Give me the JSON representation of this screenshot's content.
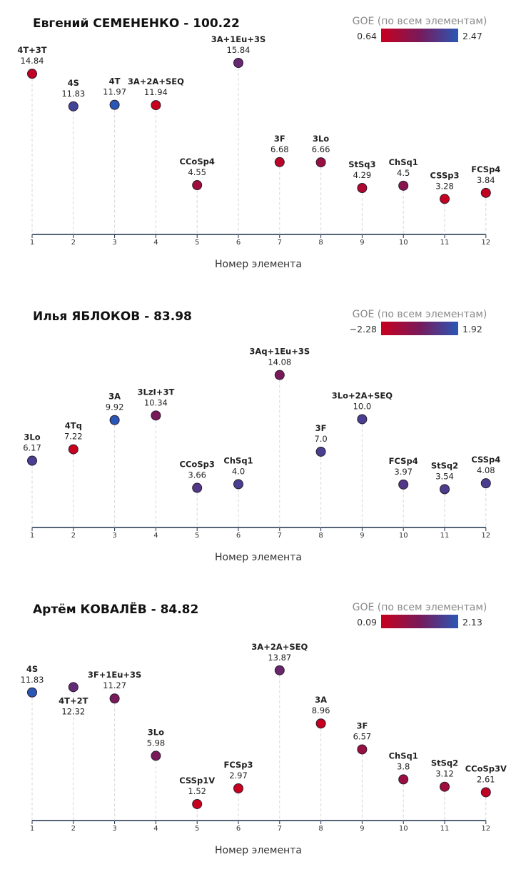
{
  "chart_data": [
    {
      "type": "scatter",
      "title": "Евгений СЕМЕНЕНКО - 100.22",
      "xlabel": "Номер элемента",
      "legend": {
        "title": "GOE (по всем элементам)",
        "min": "0.64",
        "max": "2.47",
        "placement": "top-right"
      },
      "color_low": "#c8001e",
      "color_high": "#2a57b5",
      "x": [
        1,
        2,
        3,
        4,
        5,
        6,
        7,
        8,
        9,
        10,
        11,
        12
      ],
      "elements": [
        {
          "x": 1,
          "label": "4T+3T",
          "value": 14.84,
          "value_text": "14.84",
          "goe_t": 0.05,
          "label_pos": "above"
        },
        {
          "x": 2,
          "label": "4S",
          "value": 11.83,
          "value_text": "11.83",
          "goe_t": 0.85,
          "label_pos": "above"
        },
        {
          "x": 3,
          "label": "4T",
          "value": 11.97,
          "value_text": "11.97",
          "goe_t": 1.0,
          "label_pos": "above"
        },
        {
          "x": 4,
          "label": "3A+2A+SEQ",
          "value": 11.94,
          "value_text": "11.94",
          "goe_t": 0.0,
          "label_pos": "above"
        },
        {
          "x": 5,
          "label": "CCoSp4",
          "value": 4.55,
          "value_text": "4.55",
          "goe_t": 0.25,
          "label_pos": "above"
        },
        {
          "x": 6,
          "label": "3A+1Eu+3S",
          "value": 15.84,
          "value_text": "15.84",
          "goe_t": 0.62,
          "label_pos": "above"
        },
        {
          "x": 7,
          "label": "3F",
          "value": 6.68,
          "value_text": "6.68",
          "goe_t": 0.08,
          "label_pos": "above"
        },
        {
          "x": 8,
          "label": "3Lo",
          "value": 6.66,
          "value_text": "6.66",
          "goe_t": 0.3,
          "label_pos": "above"
        },
        {
          "x": 9,
          "label": "StSq3",
          "value": 4.29,
          "value_text": "4.29",
          "goe_t": 0.15,
          "label_pos": "above"
        },
        {
          "x": 10,
          "label": "ChSq1",
          "value": 4.5,
          "value_text": "4.5",
          "goe_t": 0.4,
          "label_pos": "above"
        },
        {
          "x": 11,
          "label": "CSSp3",
          "value": 3.28,
          "value_text": "3.28",
          "goe_t": 0.02,
          "label_pos": "above"
        },
        {
          "x": 12,
          "label": "FCSp4",
          "value": 3.84,
          "value_text": "3.84",
          "goe_t": 0.04,
          "label_pos": "above"
        }
      ]
    },
    {
      "type": "scatter",
      "title": "Илья ЯБЛОКОВ - 83.98",
      "xlabel": "Номер элемента",
      "legend": {
        "title": "GOE (по всем элементам)",
        "min": "−2.28",
        "max": "1.92",
        "placement": "top-right"
      },
      "color_low": "#c8001e",
      "color_high": "#2a57b5",
      "x": [
        1,
        2,
        3,
        4,
        5,
        6,
        7,
        8,
        9,
        10,
        11,
        12
      ],
      "elements": [
        {
          "x": 1,
          "label": "3Lo",
          "value": 6.17,
          "value_text": "6.17",
          "goe_t": 0.8,
          "label_pos": "above"
        },
        {
          "x": 2,
          "label": "4Tq",
          "value": 7.22,
          "value_text": "7.22",
          "goe_t": 0.0,
          "label_pos": "above"
        },
        {
          "x": 3,
          "label": "3A",
          "value": 9.92,
          "value_text": "9.92",
          "goe_t": 1.0,
          "label_pos": "above"
        },
        {
          "x": 4,
          "label": "3LzI+3T",
          "value": 10.34,
          "value_text": "10.34",
          "goe_t": 0.5,
          "label_pos": "above"
        },
        {
          "x": 5,
          "label": "CCoSp3",
          "value": 3.66,
          "value_text": "3.66",
          "goe_t": 0.75,
          "label_pos": "above"
        },
        {
          "x": 6,
          "label": "ChSq1",
          "value": 4.0,
          "value_text": "4.0",
          "goe_t": 0.8,
          "label_pos": "above"
        },
        {
          "x": 7,
          "label": "3Aq+1Eu+3S",
          "value": 14.08,
          "value_text": "14.08",
          "goe_t": 0.5,
          "label_pos": "above"
        },
        {
          "x": 8,
          "label": "3F",
          "value": 7.0,
          "value_text": "7.0",
          "goe_t": 0.8,
          "label_pos": "above"
        },
        {
          "x": 9,
          "label": "3Lo+2A+SEQ",
          "value": 10.0,
          "value_text": "10.0",
          "goe_t": 0.8,
          "label_pos": "above"
        },
        {
          "x": 10,
          "label": "FCSp4",
          "value": 3.97,
          "value_text": "3.97",
          "goe_t": 0.75,
          "label_pos": "above"
        },
        {
          "x": 11,
          "label": "StSq2",
          "value": 3.54,
          "value_text": "3.54",
          "goe_t": 0.78,
          "label_pos": "above"
        },
        {
          "x": 12,
          "label": "CSSp4",
          "value": 4.08,
          "value_text": "4.08",
          "goe_t": 0.8,
          "label_pos": "above"
        }
      ]
    },
    {
      "type": "scatter",
      "title": "Артём КОВАЛЁВ - 84.82",
      "xlabel": "Номер элемента",
      "legend": {
        "title": "GOE (по всем элементам)",
        "min": "0.09",
        "max": "2.13",
        "placement": "top-right"
      },
      "color_low": "#c8001e",
      "color_high": "#2a57b5",
      "x": [
        1,
        2,
        3,
        4,
        5,
        6,
        7,
        8,
        9,
        10,
        11,
        12
      ],
      "elements": [
        {
          "x": 1,
          "label": "4S",
          "value": 11.83,
          "value_text": "11.83",
          "goe_t": 1.0,
          "label_pos": "above"
        },
        {
          "x": 2,
          "label": "4T+2T",
          "value": 12.32,
          "value_text": "12.32",
          "goe_t": 0.65,
          "label_pos": "below"
        },
        {
          "x": 3,
          "label": "3F+1Eu+3S",
          "value": 11.27,
          "value_text": "11.27",
          "goe_t": 0.5,
          "label_pos": "above"
        },
        {
          "x": 4,
          "label": "3Lo",
          "value": 5.98,
          "value_text": "5.98",
          "goe_t": 0.5,
          "label_pos": "above"
        },
        {
          "x": 5,
          "label": "CSSp1V",
          "value": 1.52,
          "value_text": "1.52",
          "goe_t": 0.0,
          "label_pos": "above"
        },
        {
          "x": 6,
          "label": "FCSp3",
          "value": 2.97,
          "value_text": "2.97",
          "goe_t": 0.0,
          "label_pos": "above"
        },
        {
          "x": 7,
          "label": "3A+2A+SEQ",
          "value": 13.87,
          "value_text": "13.87",
          "goe_t": 0.6,
          "label_pos": "above"
        },
        {
          "x": 8,
          "label": "3A",
          "value": 8.96,
          "value_text": "8.96",
          "goe_t": 0.0,
          "label_pos": "above"
        },
        {
          "x": 9,
          "label": "3F",
          "value": 6.57,
          "value_text": "6.57",
          "goe_t": 0.3,
          "label_pos": "above"
        },
        {
          "x": 10,
          "label": "ChSq1",
          "value": 3.8,
          "value_text": "3.8",
          "goe_t": 0.3,
          "label_pos": "above"
        },
        {
          "x": 11,
          "label": "StSq2",
          "value": 3.12,
          "value_text": "3.12",
          "goe_t": 0.25,
          "label_pos": "above"
        },
        {
          "x": 12,
          "label": "CCoSp3V",
          "value": 2.61,
          "value_text": "2.61",
          "goe_t": 0.05,
          "label_pos": "above"
        }
      ]
    }
  ]
}
